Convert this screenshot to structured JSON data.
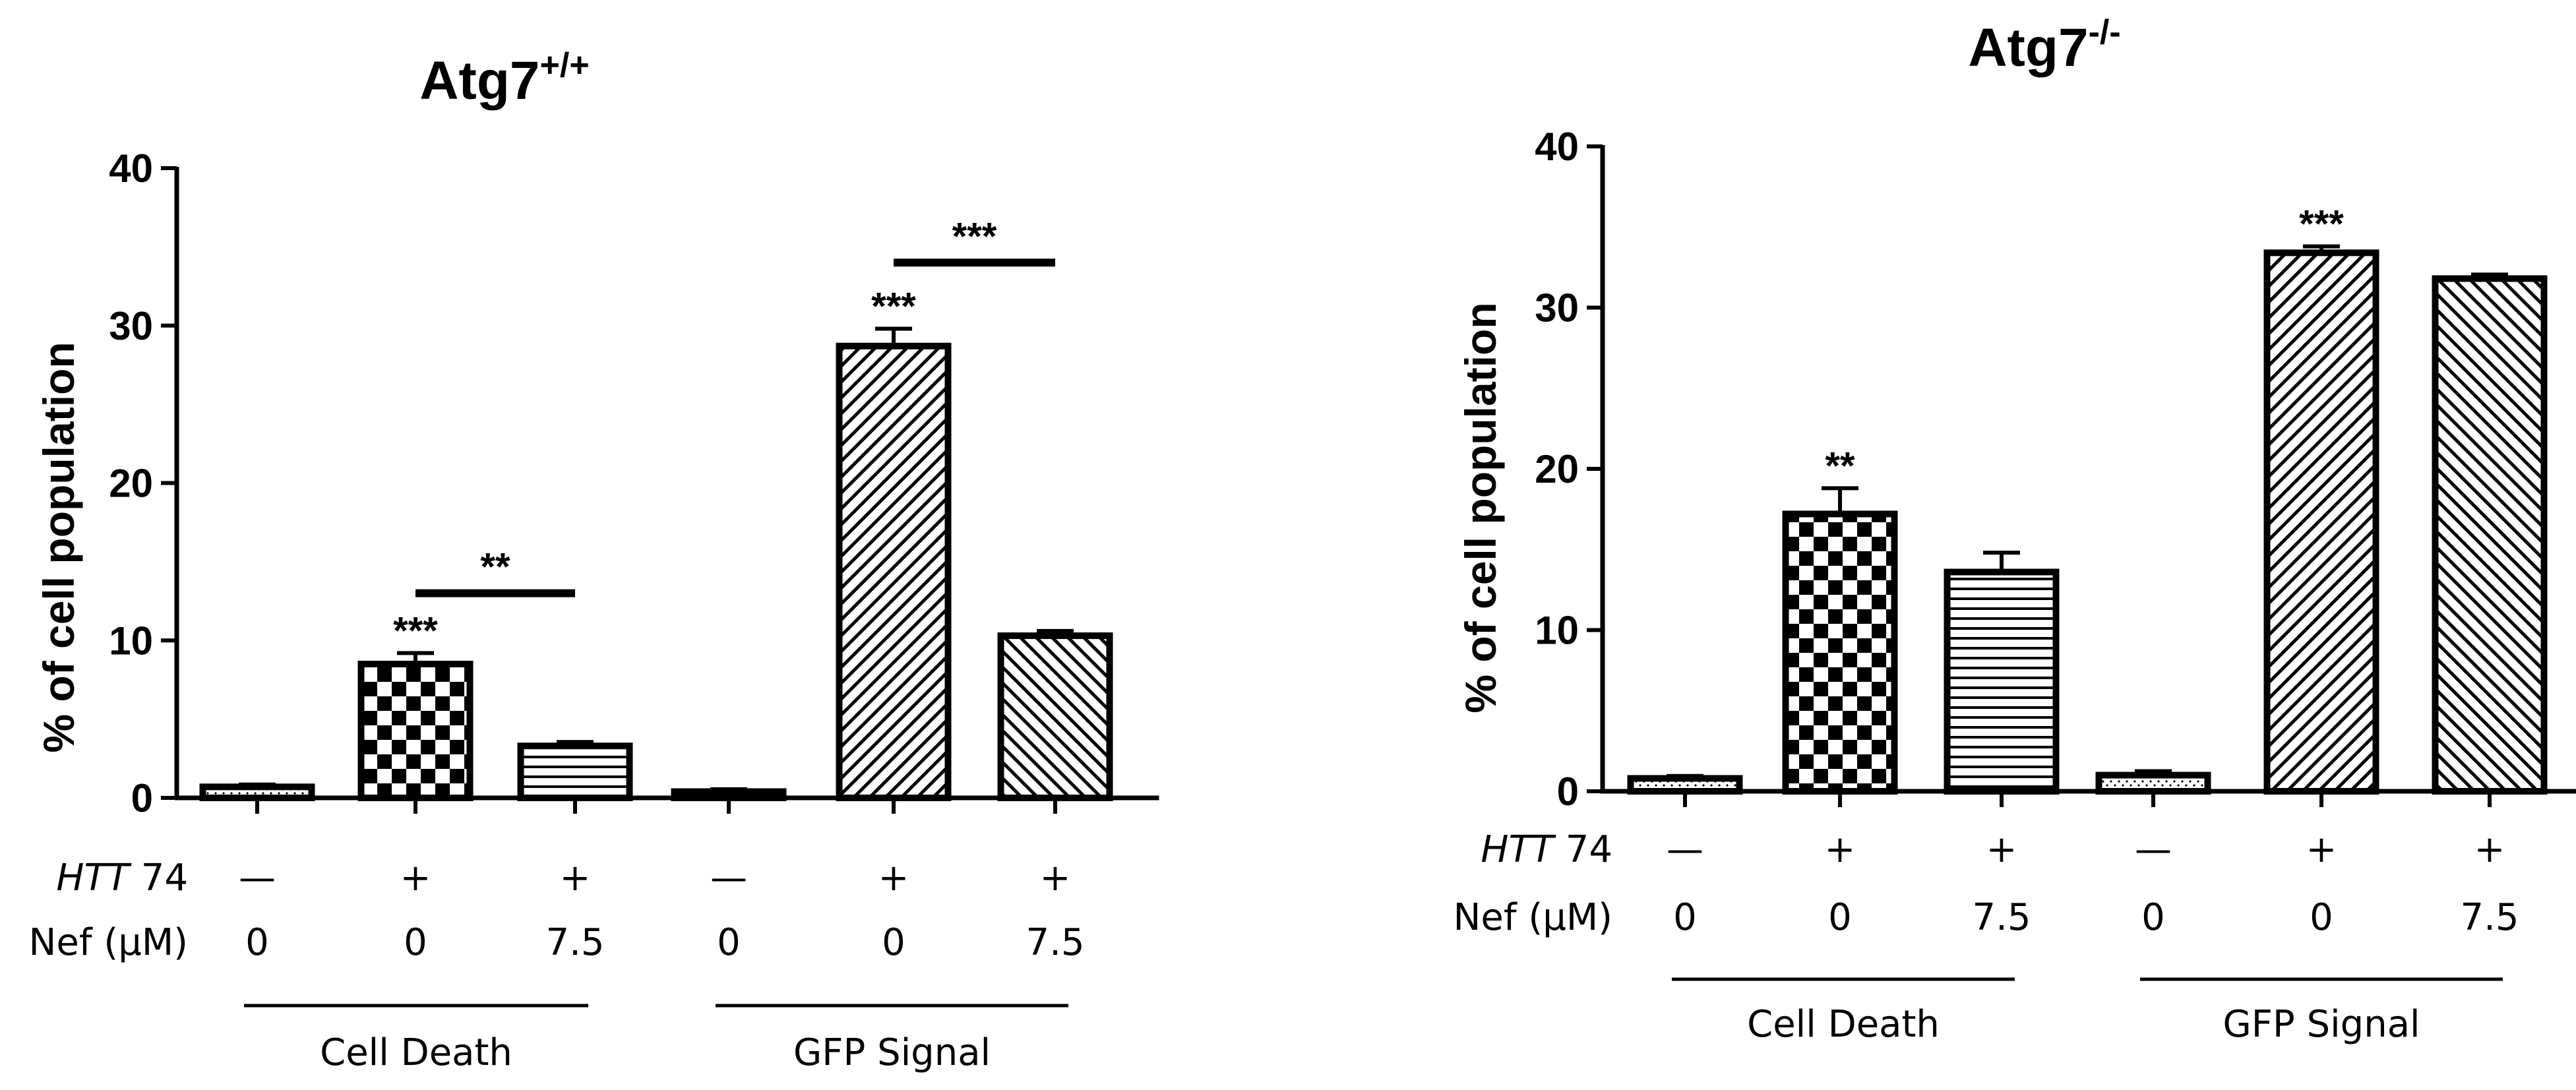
{
  "chart_data": [
    {
      "type": "bar",
      "title": "Atg7",
      "title_superscript": "+/+",
      "ylabel": "% of cell population",
      "ylim": [
        0,
        40
      ],
      "yticks": [
        "0",
        "10",
        "20",
        "30",
        "40"
      ],
      "row_labels": {
        "htt": "HTT",
        "htt_suffix": " 74",
        "nef": "Nef (μM)"
      },
      "htt74": [
        "—",
        "+",
        "+",
        "—",
        "+",
        "+"
      ],
      "nef_uM": [
        "0",
        "0",
        "7.5",
        "0",
        "0",
        "7.5"
      ],
      "groups": [
        {
          "label": "Cell Death",
          "bars": [
            0,
            1,
            2
          ]
        },
        {
          "label": "GFP Signal",
          "bars": [
            3,
            4,
            5
          ]
        }
      ],
      "values": [
        0.7,
        8.5,
        3.3,
        0.4,
        28.7,
        10.3
      ],
      "errors": [
        0.15,
        0.7,
        0.25,
        0.15,
        1.1,
        0.3
      ],
      "patterns": [
        "dots",
        "checker",
        "hlines",
        "dots",
        "diag-up",
        "diag-down"
      ],
      "significance": [
        {
          "bar": 1,
          "text": "***"
        },
        {
          "bar": 4,
          "text": "***"
        }
      ],
      "comparisons": [
        {
          "from": 1,
          "to": 2,
          "text": "**",
          "y": 13
        },
        {
          "from": 4,
          "to": 5,
          "text": "***",
          "y": 34
        }
      ]
    },
    {
      "type": "bar",
      "title": "Atg7",
      "title_superscript": "-/-",
      "ylabel": "% of cell population",
      "ylim": [
        0,
        40
      ],
      "yticks": [
        "0",
        "10",
        "20",
        "30",
        "40"
      ],
      "row_labels": {
        "htt": "HTT",
        "htt_suffix": " 74",
        "nef": "Nef (μM)"
      },
      "htt74": [
        "—",
        "+",
        "+",
        "—",
        "+",
        "+"
      ],
      "nef_uM": [
        "0",
        "0",
        "7.5",
        "0",
        "0",
        "7.5"
      ],
      "groups": [
        {
          "label": "Cell Death",
          "bars": [
            0,
            1,
            2
          ]
        },
        {
          "label": "GFP Signal",
          "bars": [
            3,
            4,
            5
          ]
        }
      ],
      "values": [
        0.8,
        17.2,
        13.6,
        1.0,
        33.4,
        31.8
      ],
      "errors": [
        0.15,
        1.6,
        1.2,
        0.25,
        0.4,
        0.25
      ],
      "patterns": [
        "dots",
        "checker",
        "hlines",
        "dots",
        "diag-up",
        "diag-down"
      ],
      "significance": [
        {
          "bar": 1,
          "text": "**"
        },
        {
          "bar": 4,
          "text": "***"
        }
      ],
      "comparisons": []
    }
  ]
}
